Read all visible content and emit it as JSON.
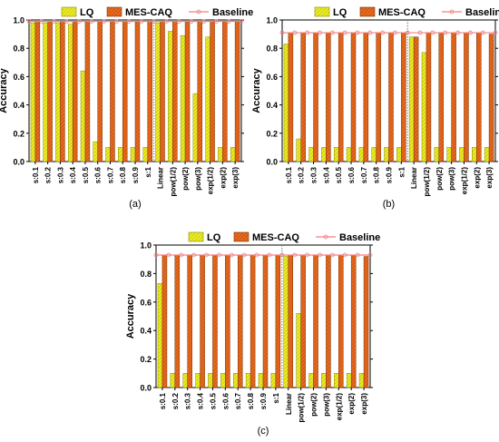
{
  "figure": {
    "legend_labels": {
      "lq": "LQ",
      "mes": "MES-CAQ",
      "baseline": "Baseline"
    },
    "colors": {
      "lq": "#ecec2a",
      "lq_stroke": "#8a8a00",
      "mes": "#e8691d",
      "mes_stroke": "#7a3306",
      "baseline": "#f08080",
      "grid_dotted": "#777777"
    }
  },
  "chart_data": [
    {
      "type": "bar",
      "caption": "(a)",
      "ylabel": "Accuracy",
      "xlabel": "",
      "ylim": [
        0,
        1.0
      ],
      "yticks": [
        "0.0",
        "0.2",
        "0.4",
        "0.6",
        "0.8",
        "1.0"
      ],
      "legend_position": "top",
      "baseline": 0.99,
      "categories": [
        "s:0.1",
        "s:0.2",
        "s:0.3",
        "s:0.4",
        "s:0.5",
        "s:0.6",
        "s:0.7",
        "s:0.8",
        "s:0.9",
        "s:1",
        "Linear",
        "pow(1/2)",
        "pow(2)",
        "pow(3)",
        "exp(1/2)",
        "exp(2)",
        "exp(3)"
      ],
      "series": [
        {
          "name": "LQ",
          "values": [
            0.98,
            0.98,
            0.98,
            0.97,
            0.64,
            0.14,
            0.1,
            0.1,
            0.1,
            0.1,
            0.98,
            0.92,
            0.89,
            0.48,
            0.88,
            0.1,
            0.1
          ]
        },
        {
          "name": "MES-CAQ",
          "values": [
            0.99,
            0.99,
            0.99,
            0.99,
            0.99,
            0.99,
            0.99,
            0.99,
            0.99,
            0.99,
            0.99,
            0.99,
            0.99,
            0.99,
            0.99,
            0.99,
            0.99
          ]
        }
      ]
    },
    {
      "type": "bar",
      "caption": "(b)",
      "ylabel": "Accuracy",
      "xlabel": "",
      "ylim": [
        0,
        1.0
      ],
      "yticks": [
        "0.0",
        "0.2",
        "0.4",
        "0.6",
        "0.8",
        "1.0"
      ],
      "legend_position": "top",
      "baseline": 0.91,
      "categories": [
        "s:0.1",
        "s:0.2",
        "s:0.3",
        "s:0.4",
        "s:0.5",
        "s:0.6",
        "s:0.7",
        "s:0.8",
        "s:0.9",
        "s:1",
        "Linear",
        "pow(1/2)",
        "pow(2)",
        "pow(3)",
        "exp(1/2)",
        "exp(2)",
        "exp(3)"
      ],
      "series": [
        {
          "name": "LQ",
          "values": [
            0.83,
            0.16,
            0.1,
            0.1,
            0.1,
            0.1,
            0.1,
            0.1,
            0.1,
            0.1,
            0.88,
            0.77,
            0.1,
            0.1,
            0.1,
            0.1,
            0.1
          ]
        },
        {
          "name": "MES-CAQ",
          "values": [
            0.91,
            0.91,
            0.91,
            0.91,
            0.91,
            0.91,
            0.91,
            0.91,
            0.91,
            0.91,
            0.88,
            0.91,
            0.91,
            0.91,
            0.91,
            0.91,
            0.9
          ]
        }
      ]
    },
    {
      "type": "bar",
      "caption": "(c)",
      "ylabel": "Accuracy",
      "xlabel": "",
      "ylim": [
        0,
        1.0
      ],
      "yticks": [
        "0.0",
        "0.2",
        "0.4",
        "0.6",
        "0.8",
        "1.0"
      ],
      "legend_position": "top",
      "baseline": 0.93,
      "categories": [
        "s:0.1",
        "s:0.2",
        "s:0.3",
        "s:0.4",
        "s:0.5",
        "s:0.6",
        "s:0.7",
        "s:0.8",
        "s:0.9",
        "s:1",
        "Linear",
        "pow(1/2)",
        "pow(2)",
        "pow(3)",
        "exp(1/2)",
        "exp(2)",
        "exp(3)"
      ],
      "series": [
        {
          "name": "LQ",
          "values": [
            0.73,
            0.1,
            0.1,
            0.1,
            0.1,
            0.1,
            0.1,
            0.1,
            0.1,
            0.1,
            0.92,
            0.52,
            0.1,
            0.1,
            0.1,
            0.1,
            0.1
          ]
        },
        {
          "name": "MES-CAQ",
          "values": [
            0.93,
            0.93,
            0.93,
            0.93,
            0.93,
            0.93,
            0.93,
            0.93,
            0.93,
            0.93,
            0.93,
            0.93,
            0.93,
            0.93,
            0.93,
            0.93,
            0.92
          ]
        }
      ]
    }
  ]
}
